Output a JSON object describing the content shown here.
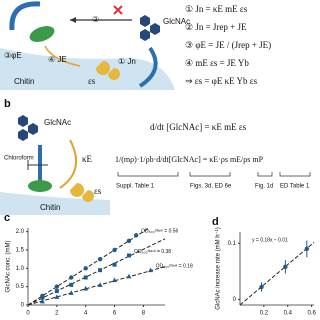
{
  "panel_a": {
    "step2": "②",
    "label_glcnac": "GlcNAc",
    "label_chitin": "Chitin",
    "label_phi": "③φE",
    "label_je": "④ JE",
    "label_es": "εs",
    "label_jn": "① Jn",
    "equations": [
      "① Jn = κE mE εs",
      "② Jn = Jrep + JE",
      "③ φE = JE / (Jrep + JE)",
      "④ mE εs = JE Yb",
      "⇒ εs = φE κE Yb εs"
    ]
  },
  "panel_b": {
    "label": "b",
    "glcnac": "GlcNAc",
    "chloroform": "Chloroform",
    "kappa": "κE",
    "es": "εs",
    "chitin": "Chitin",
    "eq1": "d/dt [GlcNAc] = κE mE εs",
    "eq2": "1/(mρ)·1/ρb·d/dt[GlcNAc] = κE·ρs mE/ρs mP",
    "notes": [
      "Suppl. Table 1",
      "Figs. 3d, ED 6e",
      "Fig. 1d",
      "ED Table 1"
    ]
  },
  "chart_data": [
    {
      "panel": "c",
      "type": "scatter",
      "ylabel": "GlcNAc conc. (mM)",
      "xlim": [
        0,
        9.5
      ],
      "ylim": [
        0,
        2.1
      ],
      "xticks": [
        0,
        2,
        4,
        6,
        8
      ],
      "yticks": [
        0,
        0.5,
        {
          "value": 1,
          "label": "1.0"
        },
        1.5,
        {
          "value": 2,
          "label": "2.0"
        }
      ],
      "series": [
        {
          "name": "OD₆₀₀ᵇˡᵃⁿᵏ = 0.56",
          "color": "#1f5a8c",
          "marker": "circle",
          "x": [
            1,
            2,
            3,
            4,
            5,
            6,
            7,
            7.5
          ],
          "values": [
            0.25,
            0.5,
            0.75,
            1.0,
            1.25,
            1.5,
            1.75,
            1.9
          ],
          "trend_slope": 0.25
        },
        {
          "name": "OD₆₀₀ᵇˡᵃⁿᵏ = 0.38",
          "color": "#1f5a8c",
          "marker": "square",
          "x": [
            1,
            2,
            3,
            4,
            5,
            6,
            7
          ],
          "values": [
            0.2,
            0.38,
            0.55,
            0.75,
            0.95,
            1.1,
            1.35
          ],
          "trend_slope": 0.19
        },
        {
          "name": "OD₆₀₀ᵇˡᵃⁿᵏ = 0.18",
          "color": "#1f5a8c",
          "marker": "triangle",
          "x": [
            1,
            2,
            3,
            4,
            5,
            6,
            7,
            8.5
          ],
          "values": [
            0.1,
            0.22,
            0.33,
            0.45,
            0.55,
            0.68,
            0.78,
            0.95
          ],
          "trend_slope": 0.11
        }
      ]
    },
    {
      "panel": "d",
      "type": "errorscatter",
      "ylabel": "GlcNAc increase rate (mM h⁻¹)",
      "annotation": "y = 0.18x − 0.01",
      "fit": {
        "slope": 0.18,
        "intercept": -0.01
      },
      "xlim": [
        0,
        0.62
      ],
      "ylim": [
        -0.01,
        0.12
      ],
      "xticks": [
        0.2,
        0.4,
        0.6
      ],
      "yticks": [
        0,
        0.1
      ],
      "x": [
        0.18,
        0.38,
        0.56
      ],
      "values": [
        0.022,
        0.058,
        0.09
      ],
      "errors": [
        0.008,
        0.012,
        0.015
      ],
      "color": "#1f5a8c"
    }
  ]
}
